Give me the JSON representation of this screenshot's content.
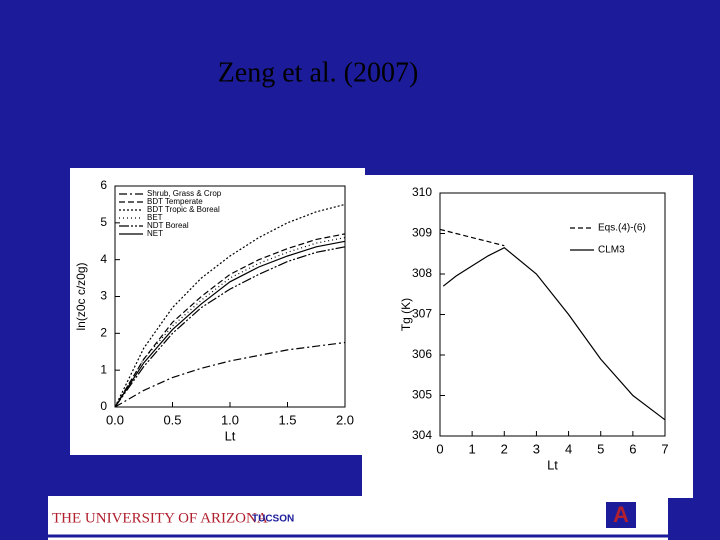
{
  "slide_title": "Zeng et al. (2007)",
  "footer": {
    "university": "THE UNIVERSITY OF ARIZONA",
    "city": "TUCSON"
  },
  "chart_data": [
    {
      "type": "line",
      "x_label": "Lt",
      "y_label": "ln(z0c c/z0g)",
      "xlim": [
        0,
        2
      ],
      "ylim": [
        0,
        6
      ],
      "xticks": [
        {
          "value": 0,
          "label": "0.0"
        },
        {
          "value": 0.5,
          "label": "0.5"
        },
        {
          "value": 1,
          "label": "1.0"
        },
        {
          "value": 1.5,
          "label": "1.5"
        },
        {
          "value": 2,
          "label": "2.0"
        }
      ],
      "yticks": [
        0,
        1,
        2,
        3,
        4,
        5,
        6
      ],
      "legend": "upper left",
      "series": [
        {
          "name": "Shrub, Grass & Crop",
          "color": "#000000",
          "x": [
            0,
            0.25,
            0.5,
            0.75,
            1,
            1.25,
            1.5,
            1.75,
            2
          ],
          "values": [
            0,
            0.45,
            0.8,
            1.05,
            1.25,
            1.4,
            1.55,
            1.65,
            1.75
          ]
        },
        {
          "name": "BDT Temperate",
          "color": "#000000",
          "x": [
            0,
            0.25,
            0.5,
            0.75,
            1,
            1.25,
            1.5,
            1.75,
            2
          ],
          "values": [
            0,
            1.3,
            2.3,
            3.0,
            3.6,
            4.0,
            4.3,
            4.55,
            4.7
          ]
        },
        {
          "name": "BDT Tropic & Boreal",
          "color": "#000000",
          "x": [
            0,
            0.25,
            0.5,
            0.75,
            1,
            1.25,
            1.5,
            1.75,
            2
          ],
          "values": [
            0,
            1.6,
            2.7,
            3.5,
            4.1,
            4.6,
            5.0,
            5.3,
            5.5
          ]
        },
        {
          "name": "BET",
          "color": "#000000",
          "x": [
            0,
            0.25,
            0.5,
            0.75,
            1,
            1.25,
            1.5,
            1.75,
            2
          ],
          "values": [
            0,
            1.3,
            2.2,
            2.9,
            3.5,
            3.9,
            4.2,
            4.45,
            4.6
          ]
        },
        {
          "name": "NDT Boreal",
          "color": "#000000",
          "x": [
            0,
            0.25,
            0.5,
            0.75,
            1,
            1.25,
            1.5,
            1.75,
            2
          ],
          "values": [
            0,
            1.1,
            2.0,
            2.7,
            3.2,
            3.6,
            3.95,
            4.2,
            4.35
          ]
        },
        {
          "name": "NET",
          "color": "#000000",
          "x": [
            0,
            0.25,
            0.5,
            0.75,
            1,
            1.25,
            1.5,
            1.75,
            2
          ],
          "values": [
            0,
            1.2,
            2.1,
            2.8,
            3.4,
            3.8,
            4.1,
            4.35,
            4.5
          ]
        }
      ]
    },
    {
      "type": "line",
      "x_label": "Lt",
      "y_label": "Tg (K)",
      "xlim": [
        0,
        7
      ],
      "ylim": [
        304,
        310
      ],
      "xticks": [
        0,
        1,
        2,
        3,
        4,
        5,
        6,
        7
      ],
      "yticks": [
        304,
        305,
        306,
        307,
        308,
        309,
        310
      ],
      "legend": "upper right",
      "series": [
        {
          "name": "Eqs.(4)-(6)",
          "color": "#000000",
          "x": [
            0,
            0.5,
            1,
            1.5,
            2
          ],
          "values": [
            309.1,
            309.0,
            308.9,
            308.8,
            308.7
          ]
        },
        {
          "name": "CLM3",
          "color": "#000000",
          "x": [
            0.1,
            0.5,
            1,
            1.5,
            2,
            3,
            4,
            5,
            6,
            7
          ],
          "values": [
            307.7,
            307.95,
            308.2,
            308.45,
            308.65,
            308.0,
            307.0,
            305.9,
            305.0,
            304.4
          ]
        }
      ]
    }
  ]
}
